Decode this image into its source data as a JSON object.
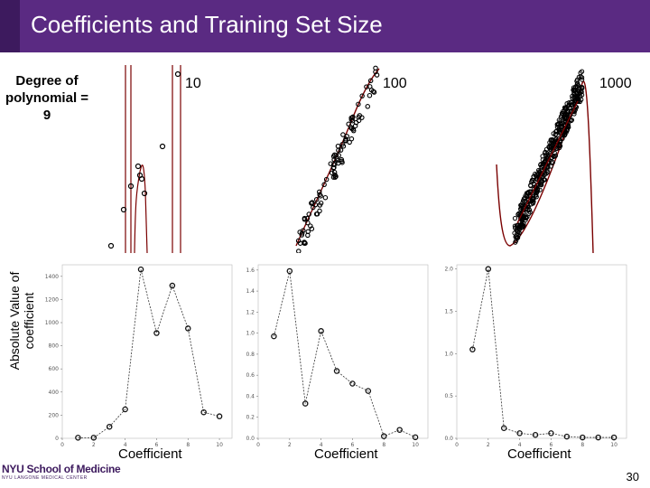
{
  "slide": {
    "title": "Coefficients and Training Set Size",
    "degree_label": "Degree of polynomial = 9",
    "y_axis_label": "Absolute Value of coefficient",
    "page_number": "30",
    "logo_text": "NYU School of Medicine",
    "logo_subtext": "NYU LANGONE MEDICAL CENTER"
  },
  "colors": {
    "title_bar": "#5a2a82",
    "fit_curve": "#7a0000",
    "points": "#000000"
  },
  "panels": [
    {
      "n_label": "10"
    },
    {
      "n_label": "100"
    },
    {
      "n_label": "1000"
    }
  ],
  "chart_data": [
    {
      "type": "line",
      "xlabel": "Coefficient",
      "x": [
        1,
        2,
        3,
        4,
        5,
        6,
        7,
        8,
        9,
        10
      ],
      "values": [
        5,
        5,
        100,
        250,
        1460,
        910,
        1320,
        950,
        225,
        190
      ],
      "ylim": [
        0,
        1500
      ],
      "yticks": [
        0,
        200,
        400,
        600,
        800,
        1000,
        1200,
        1400
      ],
      "xticks": [
        0,
        2,
        4,
        6,
        8,
        10
      ]
    },
    {
      "type": "line",
      "xlabel": "Coefficient",
      "x": [
        1,
        2,
        3,
        4,
        5,
        6,
        7,
        8,
        9,
        10
      ],
      "values": [
        0.97,
        1.59,
        0.33,
        1.02,
        0.64,
        0.52,
        0.45,
        0.02,
        0.08,
        0.01
      ],
      "ylim": [
        0,
        1.65
      ],
      "yticks": [
        0,
        0.2,
        0.4,
        0.6,
        0.8,
        1.0,
        1.2,
        1.4,
        1.6
      ],
      "xticks": [
        0,
        2,
        4,
        6,
        8,
        10
      ]
    },
    {
      "type": "line",
      "xlabel": "Coefficient",
      "x": [
        1,
        2,
        3,
        4,
        5,
        6,
        7,
        8,
        9,
        10
      ],
      "values": [
        1.05,
        2.0,
        0.12,
        0.06,
        0.04,
        0.06,
        0.02,
        0.01,
        0.01,
        0.01
      ],
      "ylim": [
        0,
        2.05
      ],
      "yticks": [
        0,
        0.5,
        1.0,
        1.5,
        2.0
      ],
      "xticks": [
        0,
        2,
        4,
        6,
        8,
        10
      ]
    }
  ]
}
